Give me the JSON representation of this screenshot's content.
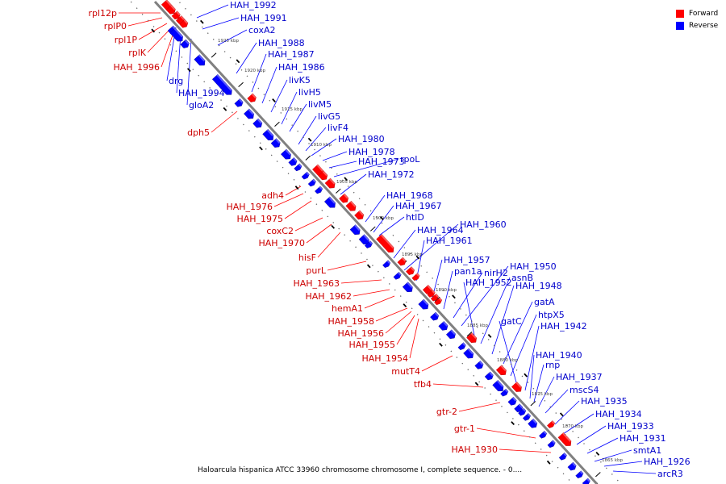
{
  "title": "Haloarcula hispanica ATCC 33960 chromosome chromosome I, complete sequence. - 0....",
  "legend": [
    {
      "label": "Forward",
      "color": "#ff0000"
    },
    {
      "label": "Reverse",
      "color": "#0000ff"
    }
  ],
  "colors": {
    "forward": "#ff0000",
    "reverse": "#0000ff",
    "backbone": "#808080"
  },
  "backbone_ticks": [
    {
      "kbp": 1925,
      "label": "1925 kbp"
    },
    {
      "kbp": 1920,
      "label": "1920 kbp"
    },
    {
      "kbp": 1915,
      "label": "1915 kbp"
    },
    {
      "kbp": 1910,
      "label": "1910 kbp"
    },
    {
      "kbp": 1905,
      "label": "1905 kbp"
    },
    {
      "kbp": 1900,
      "label": "1900 kbp"
    },
    {
      "kbp": 1895,
      "label": "1895 kbp"
    },
    {
      "kbp": 1890,
      "label": "1890 kbp"
    },
    {
      "kbp": 1885,
      "label": "1885 kbp"
    },
    {
      "kbp": 1880,
      "label": "1880 kbp"
    },
    {
      "kbp": 1875,
      "label": "1875 kbp"
    },
    {
      "kbp": 1870,
      "label": "1870 kbp"
    },
    {
      "kbp": 1865,
      "label": "1865 kbp"
    }
  ],
  "forward_genes": [
    "rpl12p",
    "rplP0",
    "rpl1P",
    "rplK",
    "HAH_1996",
    "dph5",
    "adh4",
    "HAH_1976",
    "HAH_1975",
    "coxC2",
    "HAH_1970",
    "hisF",
    "purL",
    "HAH_1963",
    "HAH_1962",
    "hemA1",
    "HAH_1958",
    "HAH_1956",
    "HAH_1955",
    "HAH_1954",
    "mutT4",
    "tfb4",
    "gtr-2",
    "gtr-1",
    "HAH_1930"
  ],
  "reverse_genes": [
    "drg",
    "HAH_1994",
    "gloA2",
    "HAH_1992",
    "HAH_1991",
    "coxA2",
    "HAH_1988",
    "HAH_1987",
    "HAH_1986",
    "livK5",
    "livH5",
    "livM5",
    "livG5",
    "livF4",
    "HAH_1980",
    "HAH_1978",
    "HAH_1973",
    "rpoL",
    "HAH_1972",
    "HAH_1968",
    "HAH_1967",
    "htlD",
    "HAH_1964",
    "HAH_1960",
    "HAH_1961",
    "HAH_1957",
    "pan1a",
    "nirH2",
    "HAH_1950",
    "HAH_1952",
    "asnB",
    "HAH_1948",
    "gatA",
    "htpX5",
    "gatC",
    "HAH_1942",
    "HAH_1940",
    "rnp",
    "HAH_1937",
    "mscS4",
    "HAH_1935",
    "HAH_1934",
    "HAH_1933",
    "HAH_1931",
    "smtA1",
    "HAH_1926",
    "arcR3"
  ]
}
